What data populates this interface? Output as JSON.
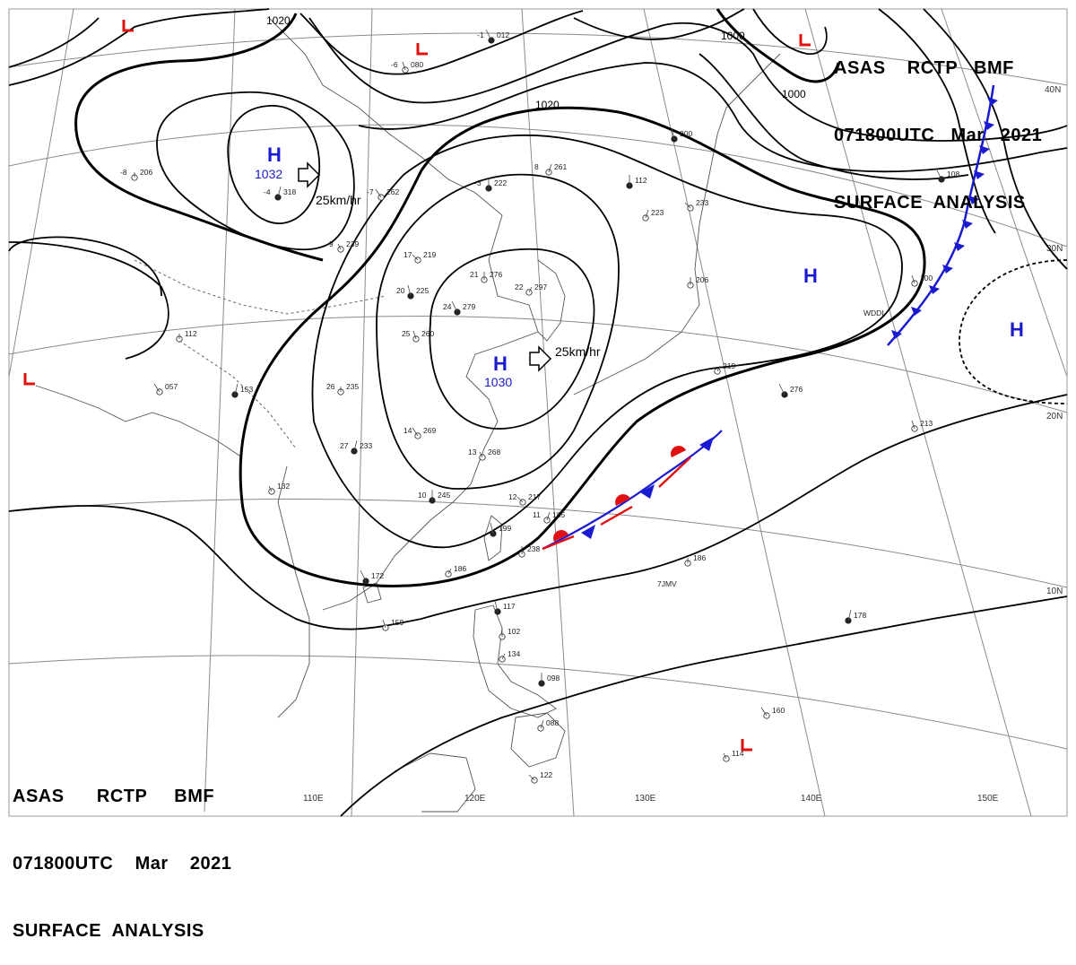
{
  "header": {
    "line1": "ASAS    RCTP   BMF",
    "line2": "071800UTC   Mar   2021",
    "line3": "SURFACE  ANALYSIS"
  },
  "footer": {
    "line1": "ASAS      RCTP     BMF",
    "line2": "071800UTC    Mar    2021",
    "line3": "SURFACE  ANALYSIS"
  },
  "grid_labels": {
    "lon_110": "110E",
    "lon_120": "120E",
    "lon_130": "130E",
    "lon_140": "140E",
    "lon_150": "150E",
    "lat_40": "40N",
    "lat_30": "30N",
    "lat_20": "20N",
    "lat_10": "10N"
  },
  "isobar_labels": [
    "1020",
    "1020",
    "1000",
    "1000"
  ],
  "pressure_centers": [
    {
      "type": "H",
      "value": "1032"
    },
    {
      "type": "H",
      "value": "1030"
    },
    {
      "type": "H",
      "value": ""
    },
    {
      "type": "H",
      "value": ""
    }
  ],
  "low_centers": [
    "L",
    "L",
    "L",
    "L"
  ],
  "motions": [
    "25km/hr",
    "25km/hr"
  ],
  "station_values": [
    "012",
    "080",
    "206",
    "318",
    "262",
    "239",
    "222",
    "261",
    "219",
    "225",
    "276",
    "297",
    "279",
    "260",
    "235",
    "233",
    "269",
    "268",
    "245",
    "185",
    "217",
    "199",
    "238",
    "186",
    "172",
    "159",
    "112",
    "153",
    "057",
    "132",
    "112",
    "223",
    "233",
    "200",
    "206",
    "219",
    "276",
    "213",
    "186",
    "178",
    "160",
    "114",
    "098",
    "088",
    "122",
    "117",
    "102",
    "134",
    "108",
    "100"
  ],
  "station_temps": [
    "-1",
    "-6",
    "-8",
    "-4",
    "-7",
    "-9",
    "-3",
    "8",
    "17",
    "20",
    "21",
    "22",
    "24",
    "25",
    "26",
    "27",
    "14",
    "13",
    "10",
    "11",
    "12"
  ],
  "station_ids": [
    "7JMV",
    "WDDI"
  ],
  "colors": {
    "isobar": "#000000",
    "high": "#1a1ad0",
    "low": "#e01010",
    "cold_front": "#1a1ad0",
    "warm_front": "#e01010",
    "coast": "#555555",
    "grid": "#8a8a8a"
  }
}
